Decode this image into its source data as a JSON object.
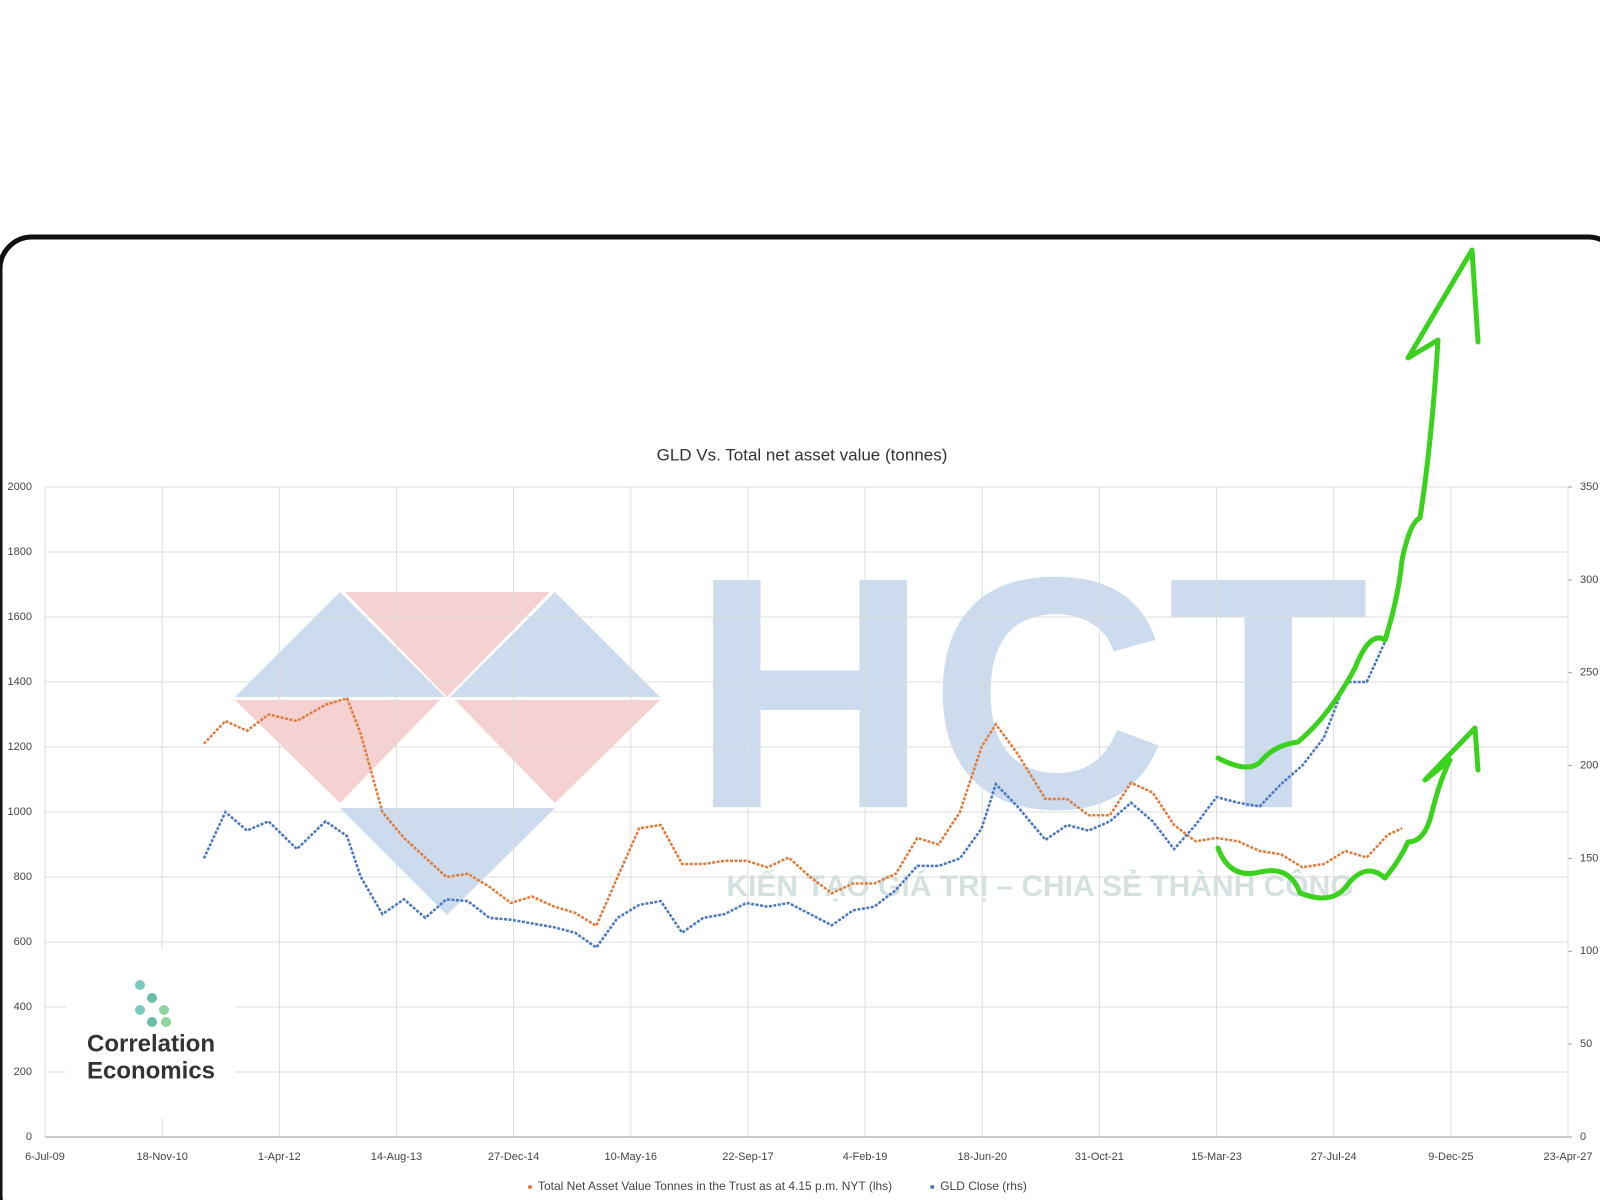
{
  "chart_data": {
    "type": "line",
    "title": "GLD Vs. Total net asset value (tonnes)",
    "x": [
      "2011-05-15",
      "2011-08-15",
      "2011-11-15",
      "2012-02-15",
      "2012-06-15",
      "2012-10-15",
      "2013-01-15",
      "2013-03-15",
      "2013-06-15",
      "2013-09-15",
      "2013-12-15",
      "2014-03-15",
      "2014-06-15",
      "2014-09-15",
      "2014-12-15",
      "2015-03-15",
      "2015-06-15",
      "2015-09-15",
      "2015-12-15",
      "2016-03-15",
      "2016-06-15",
      "2016-09-15",
      "2016-12-15",
      "2017-03-15",
      "2017-06-15",
      "2017-09-15",
      "2017-12-15",
      "2018-03-15",
      "2018-06-15",
      "2018-09-15",
      "2018-12-15",
      "2019-03-15",
      "2019-06-15",
      "2019-09-15",
      "2019-12-15",
      "2020-03-15",
      "2020-06-15",
      "2020-08-15",
      "2020-11-15",
      "2021-03-15",
      "2021-06-15",
      "2021-09-15",
      "2021-12-15",
      "2022-03-15",
      "2022-06-15",
      "2022-09-15",
      "2022-12-15",
      "2023-03-15",
      "2023-06-15",
      "2023-09-15",
      "2023-12-15",
      "2024-03-15",
      "2024-06-15",
      "2024-09-15",
      "2024-12-15",
      "2025-03-15",
      "2025-05-15"
    ],
    "series": [
      {
        "name": "Total Net Asset Value Tonnes in the Trust as at 4.15 p.m. NYT (lhs)",
        "color": "#e07b39",
        "values": [
          1210,
          1280,
          1250,
          1300,
          1280,
          1330,
          1350,
          1240,
          1000,
          920,
          860,
          800,
          810,
          770,
          720,
          740,
          710,
          690,
          650,
          800,
          950,
          960,
          840,
          840,
          850,
          850,
          830,
          860,
          800,
          750,
          780,
          780,
          810,
          920,
          900,
          1000,
          1200,
          1270,
          1180,
          1040,
          1040,
          990,
          990,
          1090,
          1060,
          960,
          910,
          920,
          910,
          880,
          870,
          830,
          840,
          880,
          860,
          930,
          950
        ]
      },
      {
        "name": "GLD Close (rhs)",
        "color": "#4a78c0",
        "axis": "y2",
        "values": [
          150,
          175,
          165,
          170,
          155,
          170,
          162,
          140,
          120,
          128,
          118,
          128,
          127,
          118,
          117,
          115,
          113,
          110,
          102,
          118,
          125,
          127,
          110,
          118,
          120,
          126,
          124,
          126,
          120,
          114,
          122,
          124,
          133,
          146,
          146,
          150,
          166,
          190,
          178,
          160,
          168,
          165,
          170,
          180,
          170,
          155,
          168,
          183,
          180,
          178,
          190,
          200,
          215,
          245,
          245,
          270,
          305
        ]
      }
    ],
    "xlim": [
      "2009-07-06",
      "2027-04-23"
    ],
    "xticks": [
      {
        "value": "2009-07-06",
        "label": "6-Jul-09"
      },
      {
        "value": "2010-11-18",
        "label": "18-Nov-10"
      },
      {
        "value": "2012-04-01",
        "label": "1-Apr-12"
      },
      {
        "value": "2013-08-14",
        "label": "14-Aug-13"
      },
      {
        "value": "2014-12-27",
        "label": "27-Dec-14"
      },
      {
        "value": "2016-05-10",
        "label": "10-May-16"
      },
      {
        "value": "2017-09-22",
        "label": "22-Sep-17"
      },
      {
        "value": "2019-02-04",
        "label": "4-Feb-19"
      },
      {
        "value": "2020-06-18",
        "label": "18-Jun-20"
      },
      {
        "value": "2021-10-31",
        "label": "31-Oct-21"
      },
      {
        "value": "2023-03-15",
        "label": "15-Mar-23"
      },
      {
        "value": "2024-07-27",
        "label": "27-Jul-24"
      },
      {
        "value": "2025-12-09",
        "label": "9-Dec-25"
      },
      {
        "value": "2027-04-23",
        "label": "23-Apr-27"
      }
    ],
    "ylim": [
      0,
      2000
    ],
    "yticks": [
      0,
      200,
      400,
      600,
      800,
      1000,
      1200,
      1400,
      1600,
      1800,
      2000
    ],
    "y2lim": [
      0,
      350
    ],
    "y2ticks": [
      0,
      50,
      100,
      150,
      200,
      250,
      300,
      350
    ],
    "grid": true,
    "legend": "bottom",
    "logo": [
      "Correlation",
      "Economics"
    ],
    "watermark": {
      "brand": "HCT",
      "slogan": "KIẾN TẠO GIÁ TRỊ – CHIA SẺ THÀNH CÔNG"
    }
  }
}
